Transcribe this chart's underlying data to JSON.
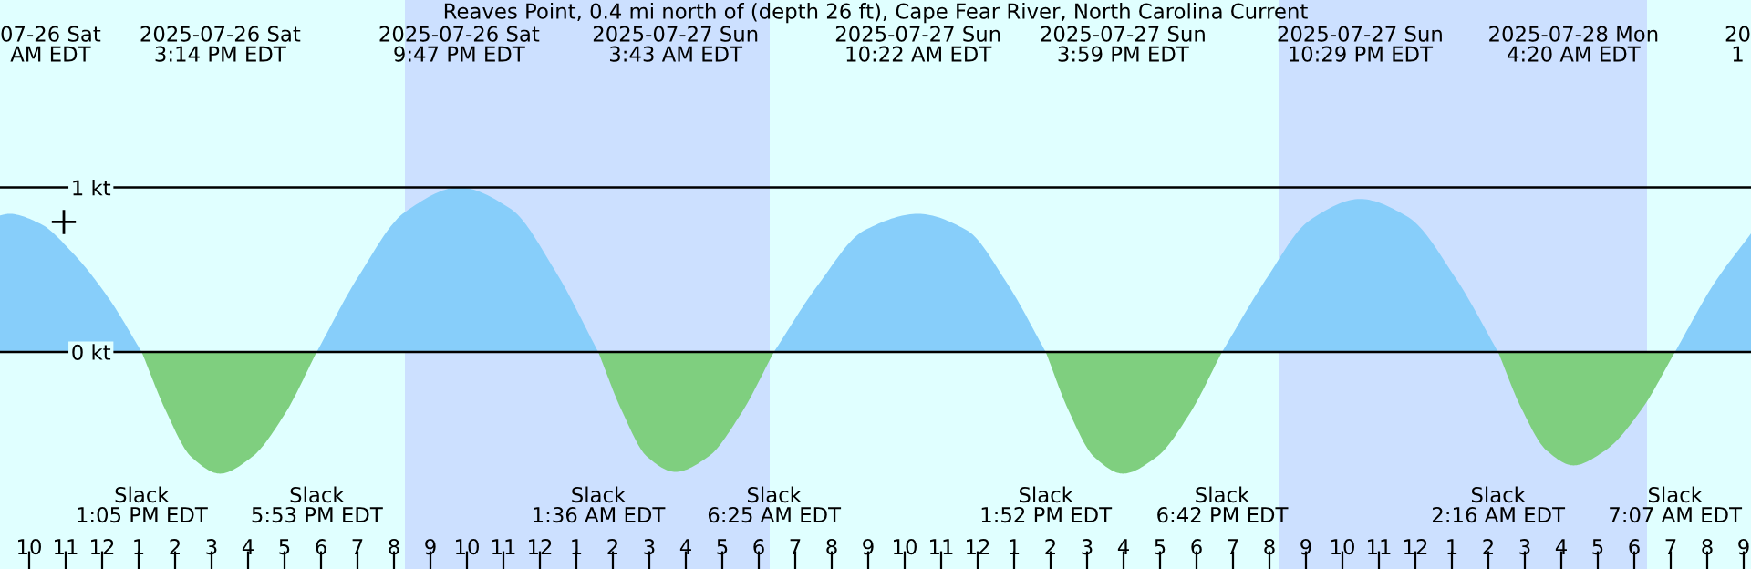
{
  "chart_data": {
    "type": "area",
    "title": "Reaves Point, 0.4 mi north of (depth 26 ft), Cape Fear River, North Carolina Current",
    "series": [
      {
        "color": "#87cefa",
        "x": [
          "2025-07-26T09:12",
          "2025-07-26T09:27",
          "2025-07-26T10:18",
          "2025-07-26T11:12",
          "2025-07-26T12:12",
          "2025-07-26T13:05",
          null,
          "2025-07-26T17:53",
          "2025-07-26T19:00",
          "2025-07-26T20:18",
          "2025-07-26T21:47",
          "2025-07-26T23:12",
          "2025-07-27T00:24",
          "2025-07-27T01:36",
          null,
          "2025-07-27T06:25",
          "2025-07-27T07:36",
          "2025-07-27T08:54",
          "2025-07-27T10:22",
          "2025-07-27T11:42",
          "2025-07-27T12:48",
          "2025-07-27T13:52",
          null,
          "2025-07-27T18:42",
          "2025-07-27T19:54",
          "2025-07-27T21:06",
          "2025-07-27T22:29",
          "2025-07-27T23:48",
          "2025-07-28T01:06",
          "2025-07-28T02:16",
          null,
          "2025-07-28T07:07",
          "2025-07-28T08:12",
          "2025-07-28T09:12"
        ],
        "values": [
          0.83,
          0.84,
          0.78,
          0.6,
          0.32,
          0,
          null,
          0,
          0.45,
          0.85,
          1.0,
          0.87,
          0.5,
          0,
          null,
          0,
          0.4,
          0.74,
          0.84,
          0.74,
          0.42,
          0,
          null,
          0,
          0.44,
          0.8,
          0.93,
          0.82,
          0.45,
          0,
          null,
          0,
          0.42,
          0.72
        ]
      },
      {
        "color": "#7fcf7f",
        "x": [
          "2025-07-26T13:05",
          "2025-07-26T13:45",
          "2025-07-26T14:27",
          "2025-07-26T15:14",
          "2025-07-26T16:06",
          "2025-07-26T17:00",
          "2025-07-26T17:53",
          null,
          "2025-07-27T01:36",
          "2025-07-27T02:15",
          "2025-07-27T02:57",
          "2025-07-27T03:43",
          "2025-07-27T04:36",
          "2025-07-27T05:30",
          "2025-07-27T06:25",
          null,
          "2025-07-27T13:52",
          "2025-07-27T14:30",
          "2025-07-27T15:12",
          "2025-07-27T15:59",
          "2025-07-27T16:54",
          "2025-07-27T17:48",
          "2025-07-27T18:42",
          null,
          "2025-07-28T02:16",
          "2025-07-28T02:54",
          "2025-07-28T03:36",
          "2025-07-28T04:20",
          "2025-07-28T05:12",
          "2025-07-28T06:12",
          "2025-07-28T07:07"
        ],
        "values": [
          0,
          -0.36,
          -0.64,
          -0.74,
          -0.64,
          -0.38,
          0,
          null,
          0,
          -0.36,
          -0.64,
          -0.73,
          -0.64,
          -0.38,
          0,
          null,
          0,
          -0.36,
          -0.64,
          -0.74,
          -0.64,
          -0.38,
          0,
          null,
          0,
          -0.34,
          -0.6,
          -0.69,
          -0.6,
          -0.35,
          0
        ]
      },
      {
        "type": "scatter",
        "color": "#000000",
        "marker": "cross",
        "x": [
          "2025-07-26T10:57"
        ],
        "values": [
          0.79
        ]
      }
    ],
    "xlim": [
      "2025-07-26T09:12",
      "2025-07-28T09:12"
    ],
    "ylim": [
      -1.32,
      2.14
    ],
    "xticks": [
      {
        "value": "2025-07-26T10:00",
        "label": "10"
      },
      {
        "value": "2025-07-26T11:00",
        "label": "11"
      },
      {
        "value": "2025-07-26T12:00",
        "label": "12"
      },
      {
        "value": "2025-07-26T13:00",
        "label": "1"
      },
      {
        "value": "2025-07-26T14:00",
        "label": "2"
      },
      {
        "value": "2025-07-26T15:00",
        "label": "3"
      },
      {
        "value": "2025-07-26T16:00",
        "label": "4"
      },
      {
        "value": "2025-07-26T17:00",
        "label": "5"
      },
      {
        "value": "2025-07-26T18:00",
        "label": "6"
      },
      {
        "value": "2025-07-26T19:00",
        "label": "7"
      },
      {
        "value": "2025-07-26T20:00",
        "label": "8"
      },
      {
        "value": "2025-07-26T21:00",
        "label": "9"
      },
      {
        "value": "2025-07-26T22:00",
        "label": "10"
      },
      {
        "value": "2025-07-26T23:00",
        "label": "11"
      },
      {
        "value": "2025-07-27T00:00",
        "label": "12"
      },
      {
        "value": "2025-07-27T01:00",
        "label": "1"
      },
      {
        "value": "2025-07-27T02:00",
        "label": "2"
      },
      {
        "value": "2025-07-27T03:00",
        "label": "3"
      },
      {
        "value": "2025-07-27T04:00",
        "label": "4"
      },
      {
        "value": "2025-07-27T05:00",
        "label": "5"
      },
      {
        "value": "2025-07-27T06:00",
        "label": "6"
      },
      {
        "value": "2025-07-27T07:00",
        "label": "7"
      },
      {
        "value": "2025-07-27T08:00",
        "label": "8"
      },
      {
        "value": "2025-07-27T09:00",
        "label": "9"
      },
      {
        "value": "2025-07-27T10:00",
        "label": "10"
      },
      {
        "value": "2025-07-27T11:00",
        "label": "11"
      },
      {
        "value": "2025-07-27T12:00",
        "label": "12"
      },
      {
        "value": "2025-07-27T13:00",
        "label": "1"
      },
      {
        "value": "2025-07-27T14:00",
        "label": "2"
      },
      {
        "value": "2025-07-27T15:00",
        "label": "3"
      },
      {
        "value": "2025-07-27T16:00",
        "label": "4"
      },
      {
        "value": "2025-07-27T17:00",
        "label": "5"
      },
      {
        "value": "2025-07-27T18:00",
        "label": "6"
      },
      {
        "value": "2025-07-27T19:00",
        "label": "7"
      },
      {
        "value": "2025-07-27T20:00",
        "label": "8"
      },
      {
        "value": "2025-07-27T21:00",
        "label": "9"
      },
      {
        "value": "2025-07-27T22:00",
        "label": "10"
      },
      {
        "value": "2025-07-27T23:00",
        "label": "11"
      },
      {
        "value": "2025-07-28T00:00",
        "label": "12"
      },
      {
        "value": "2025-07-28T01:00",
        "label": "1"
      },
      {
        "value": "2025-07-28T02:00",
        "label": "2"
      },
      {
        "value": "2025-07-28T03:00",
        "label": "3"
      },
      {
        "value": "2025-07-28T04:00",
        "label": "4"
      },
      {
        "value": "2025-07-28T05:00",
        "label": "5"
      },
      {
        "value": "2025-07-28T06:00",
        "label": "6"
      },
      {
        "value": "2025-07-28T07:00",
        "label": "7"
      },
      {
        "value": "2025-07-28T08:00",
        "label": "8"
      },
      {
        "value": "2025-07-28T09:00",
        "label": "9"
      }
    ],
    "yticks": [
      {
        "value": 0,
        "label": "0 kt"
      },
      {
        "value": 1,
        "label": "1 kt"
      }
    ],
    "grid": "y",
    "bands": [
      {
        "axis": "x",
        "from": "2025-07-26T20:18",
        "to": "2025-07-27T06:18",
        "color": "#cce0ff"
      },
      {
        "axis": "x",
        "from": "2025-07-27T20:15",
        "to": "2025-07-28T06:21",
        "color": "#cce0ff"
      }
    ],
    "annotations": [
      "07-26 Sat\nAM EDT",
      "2025-07-26 Sat\n3:14 PM EDT",
      "2025-07-26 Sat\n9:47 PM EDT",
      "2025-07-27 Sun\n3:43 AM EDT",
      "2025-07-27 Sun\n10:22 AM EDT",
      "2025-07-27 Sun\n3:59 PM EDT",
      "2025-07-27 Sun\n10:29 PM EDT",
      "2025-07-28 Mon\n4:20 AM EDT",
      "20\n1",
      "Slack\n1:05 PM EDT",
      "Slack\n5:53 PM EDT",
      "Slack\n1:36 AM EDT",
      "Slack\n6:25 AM EDT",
      "Slack\n1:52 PM EDT",
      "Slack\n6:42 PM EDT",
      "Slack\n2:16 AM EDT",
      "Slack\n7:07 AM EDT"
    ]
  }
}
